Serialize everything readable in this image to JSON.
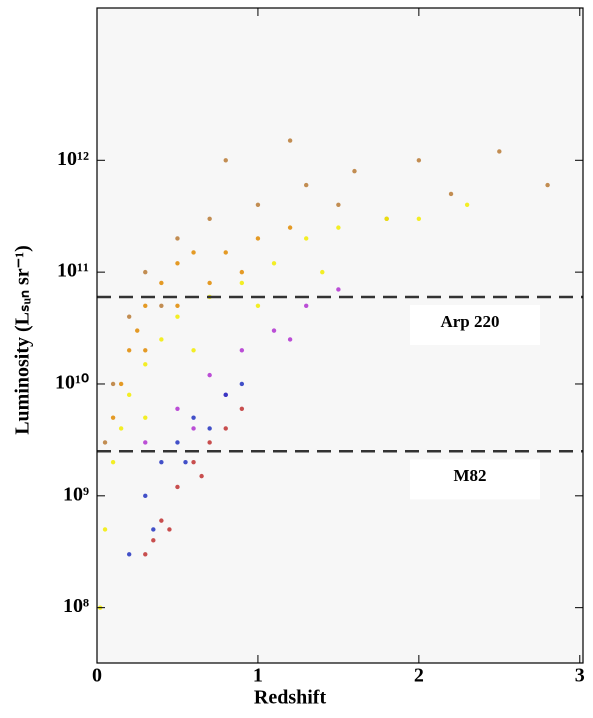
{
  "chart_data": {
    "type": "scatter",
    "xlabel": "Redshift",
    "ylabel": "Luminosity (Lₛᵤₙ sr⁻¹)",
    "xlim": [
      0,
      3.02
    ],
    "xticks": [
      0,
      1,
      2,
      3
    ],
    "ylim": [
      32000000,
      23000000000000
    ],
    "log_y": true,
    "yticks": [
      {
        "value": 100000000,
        "label": "10⁸"
      },
      {
        "value": 1000000000,
        "label": "10⁹"
      },
      {
        "value": 10000000000,
        "label": "10¹⁰"
      },
      {
        "value": 100000000000,
        "label": "10¹¹"
      },
      {
        "value": 1000000000000,
        "label": "10¹²"
      }
    ],
    "hlines": [
      {
        "value": 60000000000,
        "label": "Arp 220"
      },
      {
        "value": 2500000000,
        "label": "M82"
      }
    ],
    "series": [
      {
        "color": "#b87a35",
        "x": [
          0.05,
          0.1,
          0.2,
          0.3,
          0.4,
          0.5,
          0.7,
          0.8,
          1.0,
          1.2,
          1.3,
          1.5,
          1.6,
          1.8,
          2.0,
          2.2,
          2.5,
          2.8
        ],
        "values": [
          3000000000,
          10000000000,
          40000000000,
          100000000000,
          50000000000,
          200000000000,
          300000000000,
          1000000000000,
          400000000000,
          1500000000000,
          600000000000,
          400000000000,
          800000000000,
          300000000000,
          1000000000000,
          500000000000,
          1200000000000,
          600000000000
        ]
      },
      {
        "color": "#e08a00",
        "x": [
          0.1,
          0.15,
          0.2,
          0.25,
          0.3,
          0.3,
          0.4,
          0.5,
          0.5,
          0.6,
          0.7,
          0.8,
          0.9,
          1.0,
          1.2
        ],
        "values": [
          5000000000,
          10000000000,
          20000000000,
          30000000000,
          50000000000,
          20000000000,
          80000000000,
          120000000000,
          50000000000,
          150000000000,
          80000000000,
          150000000000,
          100000000000,
          200000000000,
          250000000000
        ]
      },
      {
        "color": "#f2ec00",
        "x": [
          0.02,
          0.05,
          0.1,
          0.15,
          0.2,
          0.3,
          0.3,
          0.4,
          0.5,
          0.6,
          0.7,
          0.9,
          1.0,
          1.1,
          1.3,
          1.4,
          1.5,
          1.8,
          2.0,
          2.3
        ],
        "values": [
          100000000,
          500000000,
          2000000000,
          4000000000,
          8000000000,
          15000000000,
          5000000000,
          25000000000,
          40000000000,
          20000000000,
          60000000000,
          80000000000,
          50000000000,
          120000000000,
          200000000000,
          100000000000,
          250000000000,
          300000000000,
          300000000000,
          400000000000
        ]
      },
      {
        "color": "#b030d0",
        "x": [
          0.3,
          0.5,
          0.6,
          0.7,
          0.8,
          0.9,
          1.1,
          1.2,
          1.3,
          1.5
        ],
        "values": [
          3000000000,
          6000000000,
          4000000000,
          12000000000,
          8000000000,
          20000000000,
          30000000000,
          25000000000,
          50000000000,
          70000000000
        ]
      },
      {
        "color": "#2233c0",
        "x": [
          0.2,
          0.3,
          0.35,
          0.4,
          0.5,
          0.55,
          0.6,
          0.7,
          0.8,
          0.9
        ],
        "values": [
          300000000,
          1000000000,
          500000000,
          2000000000,
          3000000000,
          2000000000,
          5000000000,
          4000000000,
          8000000000,
          10000000000
        ]
      },
      {
        "color": "#c03030",
        "x": [
          0.3,
          0.35,
          0.4,
          0.45,
          0.5,
          0.6,
          0.65,
          0.7,
          0.8,
          0.9
        ],
        "values": [
          300000000,
          400000000,
          600000000,
          500000000,
          1200000000,
          2000000000,
          1500000000,
          3000000000,
          4000000000,
          6000000000
        ]
      }
    ]
  }
}
